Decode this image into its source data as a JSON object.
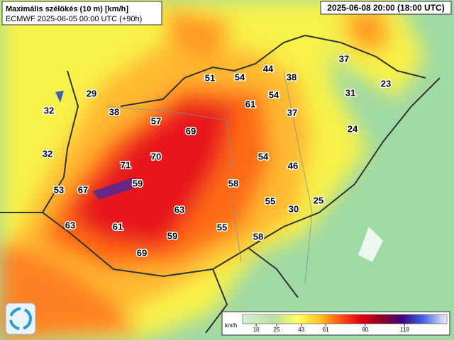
{
  "header": {
    "title": "Maximális szélökés (10 m) [km/h]",
    "subtitle": "ECMWF 2025-06-05 00:00 UTC (+90h)"
  },
  "valid_time": "2025-06-08 20:00 (18:00 UTC)",
  "stations": [
    51,
    54,
    44,
    38,
    37,
    23,
    29,
    38,
    57,
    69,
    61,
    54,
    37,
    31,
    32,
    24,
    32,
    70,
    71,
    54,
    46,
    53,
    67,
    59,
    58,
    55,
    25,
    30,
    63,
    63,
    61,
    59,
    55,
    58,
    69
  ],
  "legend": {
    "unit": "km/h",
    "ticks": [
      10,
      25,
      43,
      61,
      90,
      119
    ]
  }
}
